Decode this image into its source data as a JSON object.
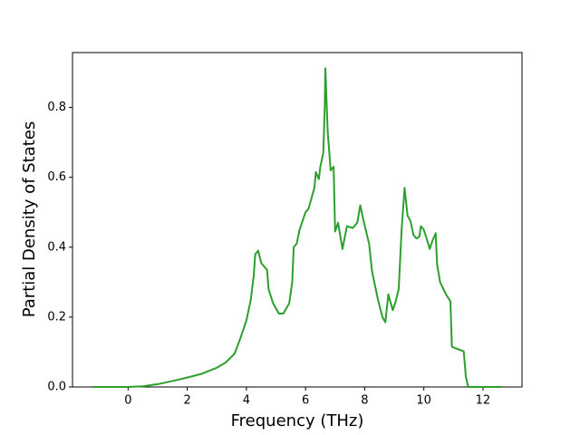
{
  "chart_data": {
    "type": "line",
    "x_label": "Frequency (THz)",
    "y_label": "Partial Density of States",
    "color": "#2ca02c",
    "x": [
      -1.19,
      0,
      0.5,
      1,
      1.5,
      2,
      2.5,
      3,
      3.3,
      3.6,
      3.8,
      4.0,
      4.15,
      4.25,
      4.3,
      4.4,
      4.5,
      4.7,
      4.75,
      4.9,
      5.1,
      5.25,
      5.45,
      5.55,
      5.6,
      5.7,
      5.8,
      6.0,
      6.1,
      6.3,
      6.35,
      6.45,
      6.5,
      6.6,
      6.65,
      6.67,
      6.75,
      6.85,
      6.95,
      7.0,
      7.1,
      7.25,
      7.4,
      7.6,
      7.75,
      7.85,
      7.95,
      8.15,
      8.25,
      8.45,
      8.6,
      8.7,
      8.8,
      8.95,
      9.05,
      9.15,
      9.25,
      9.35,
      9.45,
      9.55,
      9.65,
      9.75,
      9.85,
      9.9,
      10.0,
      10.15,
      10.2,
      10.3,
      10.4,
      10.45,
      10.55,
      10.75,
      10.9,
      10.95,
      11.35,
      11.42,
      11.5,
      12.63
    ],
    "values": [
      0,
      0,
      0.002,
      0.008,
      0.017,
      0.027,
      0.038,
      0.055,
      0.07,
      0.095,
      0.14,
      0.19,
      0.25,
      0.32,
      0.38,
      0.39,
      0.355,
      0.335,
      0.28,
      0.24,
      0.21,
      0.21,
      0.24,
      0.3,
      0.4,
      0.41,
      0.45,
      0.5,
      0.51,
      0.57,
      0.615,
      0.595,
      0.63,
      0.67,
      0.8,
      0.912,
      0.73,
      0.62,
      0.63,
      0.445,
      0.47,
      0.395,
      0.46,
      0.455,
      0.47,
      0.52,
      0.48,
      0.41,
      0.33,
      0.25,
      0.2,
      0.185,
      0.265,
      0.22,
      0.245,
      0.28,
      0.45,
      0.57,
      0.49,
      0.475,
      0.435,
      0.425,
      0.43,
      0.46,
      0.45,
      0.41,
      0.395,
      0.42,
      0.44,
      0.35,
      0.3,
      0.265,
      0.245,
      0.115,
      0.102,
      0.03,
      0,
      0
    ],
    "xlim": [
      -1.88,
      13.32
    ],
    "ylim": [
      0,
      0.957
    ],
    "xticks": [
      0,
      2,
      4,
      6,
      8,
      10,
      12
    ],
    "yticks": [
      {
        "value": 0,
        "label": "0.0"
      },
      0.2,
      0.4,
      0.6,
      0.8
    ]
  }
}
